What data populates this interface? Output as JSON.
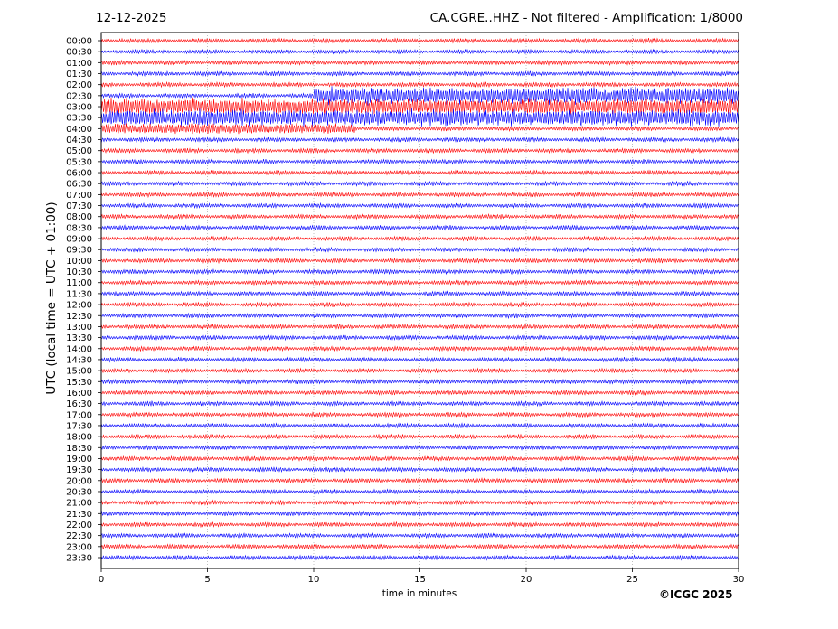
{
  "header": {
    "date": "12-12-2025",
    "title": "CA.CGRE..HHZ - Not filtered - Amplification: 1/8000"
  },
  "footer": {
    "copyright": "©ICGC 2025"
  },
  "chart_data": {
    "type": "line",
    "title": "CA.CGRE..HHZ - Not filtered - Amplification: 1/8000",
    "xlabel": "time in minutes",
    "ylabel": "UTC (local time = UTC + 01:00)",
    "xlim": [
      0,
      30
    ],
    "x_ticks": [
      0,
      5,
      10,
      15,
      20,
      25,
      30
    ],
    "grid": true,
    "row_labels": [
      "00:00",
      "00:30",
      "01:00",
      "01:30",
      "02:00",
      "02:30",
      "03:00",
      "03:30",
      "04:00",
      "04:30",
      "05:00",
      "05:30",
      "06:00",
      "06:30",
      "07:00",
      "07:30",
      "08:00",
      "08:30",
      "09:00",
      "09:30",
      "10:00",
      "10:30",
      "11:00",
      "11:30",
      "12:00",
      "12:30",
      "13:00",
      "13:30",
      "14:00",
      "14:30",
      "15:00",
      "15:30",
      "16:00",
      "16:30",
      "17:00",
      "17:30",
      "18:00",
      "18:30",
      "19:00",
      "19:30",
      "20:00",
      "20:30",
      "21:00",
      "21:30",
      "22:00",
      "22:30",
      "23:00",
      "23:30"
    ],
    "row_colors": [
      "#ff0000",
      "#0000ff"
    ],
    "events": [
      {
        "row": "02:30",
        "start_minute": 10.0,
        "end_minute": 30.0,
        "level": "high"
      },
      {
        "row": "03:00",
        "start_minute": 0.0,
        "end_minute": 30.0,
        "level": "high"
      },
      {
        "row": "03:30",
        "start_minute": 0.0,
        "end_minute": 30.0,
        "level": "high"
      },
      {
        "row": "04:00",
        "start_minute": 0.0,
        "end_minute": 12.0,
        "level": "medium"
      }
    ]
  }
}
